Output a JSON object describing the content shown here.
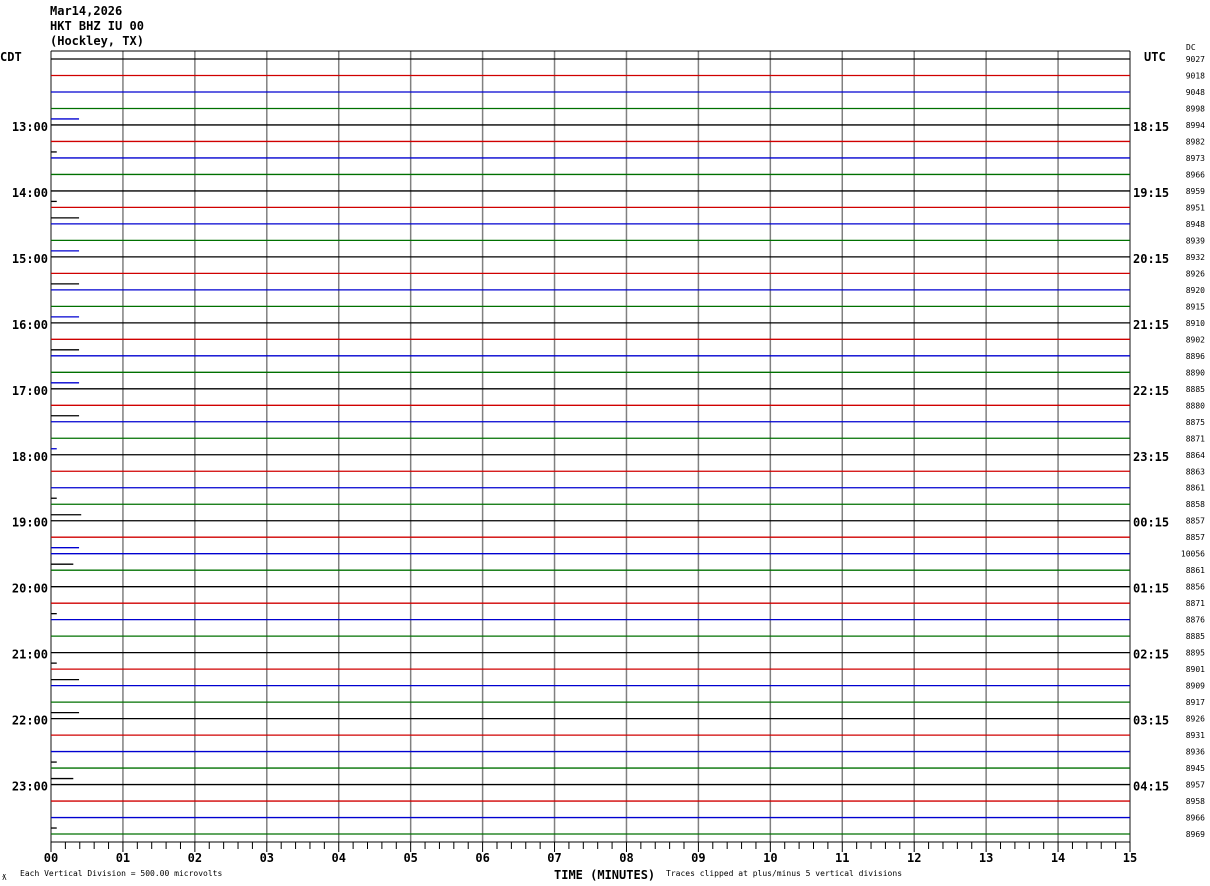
{
  "header": {
    "date": "Mar14,2026",
    "station": "HKT BHZ IU 00",
    "location": "(Hockley, TX)"
  },
  "chart_data": {
    "type": "line",
    "title": "Mar14,2026 HKT BHZ IU 00 (Hockley, TX)",
    "left_axis_label": "CDT",
    "right_axis_label": "UTC",
    "dc_label": "DC",
    "xlabel": "TIME (MINUTES)",
    "xlim": [
      0,
      15
    ],
    "x_ticks": [
      "00",
      "01",
      "02",
      "03",
      "04",
      "05",
      "06",
      "07",
      "08",
      "09",
      "10",
      "11",
      "12",
      "13",
      "14",
      "15"
    ],
    "minor_ticks_per_minute": 5,
    "grid": true,
    "rows_per_hour": 4,
    "line_colors": [
      "#000000",
      "#d00000",
      "#0000d0",
      "#007000"
    ],
    "grid_color": "#808080",
    "left_hour_labels": [
      "13:00",
      "14:00",
      "15:00",
      "16:00",
      "17:00",
      "18:00",
      "19:00",
      "20:00",
      "21:00",
      "22:00",
      "23:00"
    ],
    "right_hour_labels": [
      "18:15",
      "19:15",
      "20:15",
      "21:15",
      "22:15",
      "23:15",
      "00:15",
      "01:15",
      "02:15",
      "03:15",
      "04:15"
    ],
    "dc_values": [
      "9027",
      "9018",
      "9048",
      "8998",
      "8994",
      "8982",
      "8973",
      "8966",
      "8959",
      "8951",
      "8948",
      "8939",
      "8932",
      "8926",
      "8920",
      "8915",
      "8910",
      "8902",
      "8896",
      "8890",
      "8885",
      "8880",
      "8875",
      "8871",
      "8864",
      "8863",
      "8861",
      "8858",
      "8857",
      "8857",
      "10056",
      "8861",
      "8856",
      "8871",
      "8876",
      "8885",
      "8895",
      "8901",
      "8909",
      "8917",
      "8926",
      "8931",
      "8936",
      "8945",
      "8957",
      "8958",
      "8966",
      "8969"
    ],
    "trace_marks": [
      {
        "row": 4,
        "minutes": 0.39,
        "color": "#0000d0"
      },
      {
        "row": 6,
        "minutes": 0.08,
        "color": "#000000"
      },
      {
        "row": 9,
        "minutes": 0.08,
        "color": "#000000"
      },
      {
        "row": 10,
        "minutes": 0.39,
        "color": "#000000"
      },
      {
        "row": 12,
        "minutes": 0.39,
        "color": "#0000d0"
      },
      {
        "row": 14,
        "minutes": 0.39,
        "color": "#000000"
      },
      {
        "row": 16,
        "minutes": 0.39,
        "color": "#0000d0"
      },
      {
        "row": 18,
        "minutes": 0.39,
        "color": "#000000"
      },
      {
        "row": 20,
        "minutes": 0.39,
        "color": "#0000d0"
      },
      {
        "row": 22,
        "minutes": 0.39,
        "color": "#000000"
      },
      {
        "row": 24,
        "minutes": 0.08,
        "color": "#0000d0"
      },
      {
        "row": 27,
        "minutes": 0.08,
        "color": "#000000"
      },
      {
        "row": 28,
        "minutes": 0.42,
        "color": "#000000"
      },
      {
        "row": 30,
        "minutes": 0.39,
        "color": "#0000d0"
      },
      {
        "row": 31,
        "minutes": 0.31,
        "color": "#000000"
      },
      {
        "row": 34,
        "minutes": 0.08,
        "color": "#000000"
      },
      {
        "row": 37,
        "minutes": 0.08,
        "color": "#000000"
      },
      {
        "row": 38,
        "minutes": 0.39,
        "color": "#000000"
      },
      {
        "row": 40,
        "minutes": 0.39,
        "color": "#000000"
      },
      {
        "row": 43,
        "minutes": 0.08,
        "color": "#000000"
      },
      {
        "row": 44,
        "minutes": 0.31,
        "color": "#000000"
      },
      {
        "row": 47,
        "minutes": 0.08,
        "color": "#000000"
      }
    ]
  },
  "footer": {
    "scale_note": "Each Vertical Division =  500.00 microvolts",
    "clip_note": "Traces clipped at plus/minus 5 vertical divisions",
    "corner_mark": "ƛ"
  }
}
